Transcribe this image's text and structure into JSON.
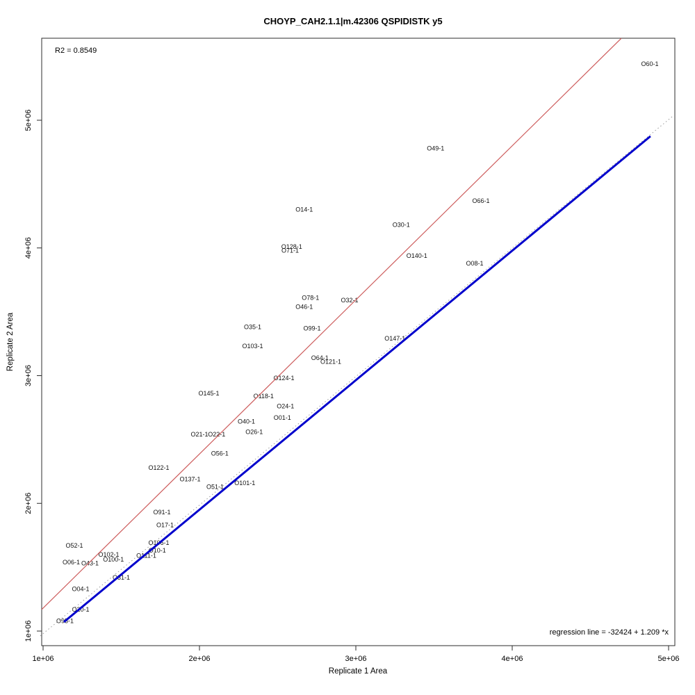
{
  "title": "CHOYP_CAH2.1.1|m.42306 QSPIDISTK y5",
  "annotations": {
    "r2_label": "R2 = 0.8549",
    "regression_label": "regression line = -32424 + 1.209 *x"
  },
  "chart_data": {
    "type": "scatter",
    "title": "CHOYP_CAH2.1.1|m.42306 QSPIDISTK y5",
    "xlabel": "Replicate 1 Area",
    "ylabel": "Replicate 2 Area",
    "xlim": [
      960000,
      5050000
    ],
    "ylim": [
      880000,
      5650000
    ],
    "grid": false,
    "legend": "none",
    "r_squared": 0.8549,
    "regression": {
      "intercept": -32424,
      "slope": 1.209
    },
    "x_axis": {
      "ticks": [
        {
          "value": 1000000,
          "label": "1e+06"
        },
        {
          "value": 2000000,
          "label": "2e+06"
        },
        {
          "value": 3000000,
          "label": "3e+06"
        },
        {
          "value": 4000000,
          "label": "4e+06"
        },
        {
          "value": 5000000,
          "label": "5e+06"
        }
      ]
    },
    "y_axis": {
      "ticks": [
        {
          "value": 1000000,
          "label": "1e+06"
        },
        {
          "value": 2000000,
          "label": "2e+06"
        },
        {
          "value": 3000000,
          "label": "3e+06"
        },
        {
          "value": 4000000,
          "label": "4e+06"
        },
        {
          "value": 5000000,
          "label": "5e+06"
        }
      ]
    },
    "points": [
      {
        "label": "O60-1",
        "x": 4880000,
        "y": 5440000
      },
      {
        "label": "O49-1",
        "x": 3510000,
        "y": 4780000
      },
      {
        "label": "O66-1",
        "x": 3800000,
        "y": 4370000
      },
      {
        "label": "O14-1",
        "x": 2670000,
        "y": 4300000
      },
      {
        "label": "O30-1",
        "x": 3290000,
        "y": 4180000
      },
      {
        "label": "O128-1",
        "x": 2590000,
        "y": 4010000
      },
      {
        "label": "O71-1",
        "x": 2580000,
        "y": 3980000
      },
      {
        "label": "O140-1",
        "x": 3390000,
        "y": 3940000
      },
      {
        "label": "O08-1",
        "x": 3760000,
        "y": 3880000
      },
      {
        "label": "O78-1",
        "x": 2710000,
        "y": 3610000
      },
      {
        "label": "O32-1",
        "x": 2960000,
        "y": 3590000
      },
      {
        "label": "O46-1",
        "x": 2670000,
        "y": 3540000
      },
      {
        "label": "O35-1",
        "x": 2340000,
        "y": 3380000
      },
      {
        "label": "O99-1",
        "x": 2720000,
        "y": 3370000
      },
      {
        "label": "O147-1",
        "x": 3250000,
        "y": 3290000
      },
      {
        "label": "O103-1",
        "x": 2340000,
        "y": 3230000
      },
      {
        "label": "O64-1",
        "x": 2770000,
        "y": 3140000
      },
      {
        "label": "O121-1",
        "x": 2840000,
        "y": 3110000
      },
      {
        "label": "O124-1",
        "x": 2540000,
        "y": 2980000
      },
      {
        "label": "O145-1",
        "x": 2060000,
        "y": 2860000
      },
      {
        "label": "O118-1",
        "x": 2410000,
        "y": 2840000
      },
      {
        "label": "O24-1",
        "x": 2550000,
        "y": 2760000
      },
      {
        "label": "O01-1",
        "x": 2530000,
        "y": 2670000
      },
      {
        "label": "O40-1",
        "x": 2300000,
        "y": 2640000
      },
      {
        "label": "O26-1",
        "x": 2350000,
        "y": 2560000
      },
      {
        "label": "O21-1",
        "x": 2000000,
        "y": 2540000
      },
      {
        "label": "O22-1",
        "x": 2110000,
        "y": 2540000
      },
      {
        "label": "O56-1",
        "x": 2130000,
        "y": 2390000
      },
      {
        "label": "O122-1",
        "x": 1740000,
        "y": 2280000
      },
      {
        "label": "O137-1",
        "x": 1940000,
        "y": 2190000
      },
      {
        "label": "O101-1",
        "x": 2290000,
        "y": 2160000
      },
      {
        "label": "O51-1",
        "x": 2100000,
        "y": 2130000
      },
      {
        "label": "O91-1",
        "x": 1760000,
        "y": 1930000
      },
      {
        "label": "O17-1",
        "x": 1780000,
        "y": 1830000
      },
      {
        "label": "O106-1",
        "x": 1740000,
        "y": 1690000
      },
      {
        "label": "O52-1",
        "x": 1200000,
        "y": 1670000
      },
      {
        "label": "O10-1",
        "x": 1730000,
        "y": 1630000
      },
      {
        "label": "O102-1",
        "x": 1420000,
        "y": 1600000
      },
      {
        "label": "O111-1",
        "x": 1660000,
        "y": 1590000
      },
      {
        "label": "O100-1",
        "x": 1450000,
        "y": 1560000
      },
      {
        "label": "O06-1",
        "x": 1180000,
        "y": 1540000
      },
      {
        "label": "O43-1",
        "x": 1300000,
        "y": 1530000
      },
      {
        "label": "O31-1",
        "x": 1500000,
        "y": 1420000
      },
      {
        "label": "O04-1",
        "x": 1240000,
        "y": 1330000
      },
      {
        "label": "O20-1",
        "x": 1240000,
        "y": 1170000
      },
      {
        "label": "O95-1",
        "x": 1140000,
        "y": 1080000
      }
    ],
    "lines": [
      {
        "name": "regression-line-red",
        "color": "#cd5c5c",
        "dash": "solid",
        "width": 1.2,
        "x1": 991000,
        "y1": 1169000,
        "x2": 4698000,
        "y2": 5642000
      },
      {
        "name": "identity-line-dotted",
        "color": "#999999",
        "dash": "dotted",
        "width": 1,
        "x1": 982000,
        "y1": 962000,
        "x2": 5022000,
        "y2": 5027000
      },
      {
        "name": "fit-line-blue",
        "color": "#0000cc",
        "dash": "solid",
        "width": 3,
        "x1": 1133000,
        "y1": 1071000,
        "x2": 4884000,
        "y2": 4875000
      }
    ]
  }
}
